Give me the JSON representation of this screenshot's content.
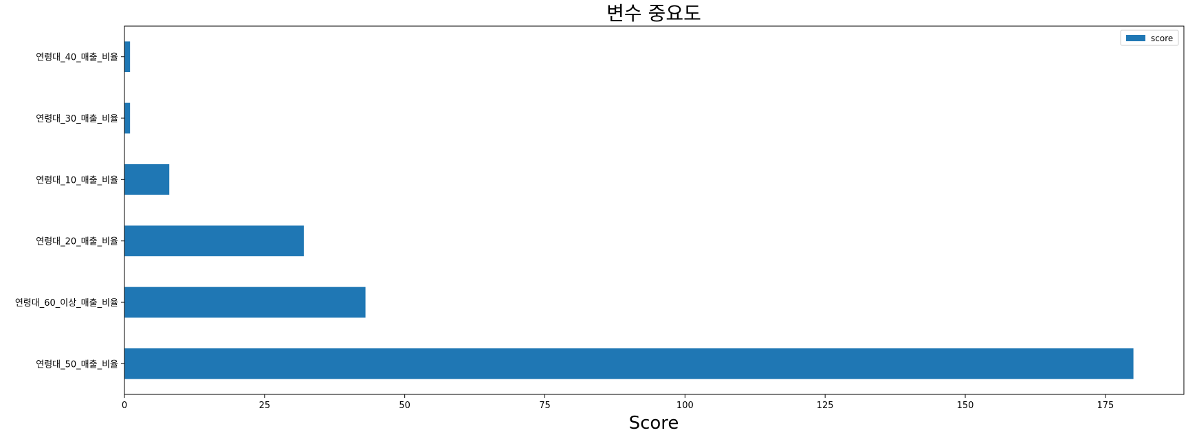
{
  "chart_data": {
    "type": "bar",
    "orientation": "horizontal",
    "title": "변수 중요도",
    "xlabel": "Score",
    "ylabel": "",
    "categories": [
      "연령대_50_매출_비율",
      "연령대_60_이상_매출_비율",
      "연령대_20_매출_비율",
      "연령대_10_매출_비율",
      "연령대_30_매출_비율",
      "연령대_40_매출_비율"
    ],
    "series": [
      {
        "name": "score",
        "values": [
          180,
          43,
          32,
          8,
          1,
          1
        ]
      }
    ],
    "xlim": [
      0,
      189
    ],
    "xticks": [
      0,
      25,
      50,
      75,
      100,
      125,
      150,
      175
    ],
    "grid": false,
    "legend": "top-right",
    "colors": {
      "bar": "#1f77b4",
      "axis": "#000000"
    }
  }
}
